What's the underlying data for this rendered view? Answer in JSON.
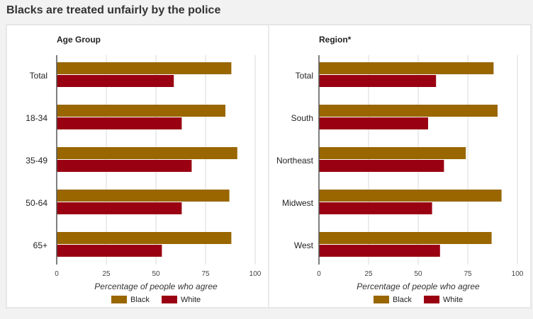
{
  "page": {
    "title": "Blacks are treated unfairly by the police"
  },
  "colors": {
    "black_series": "#996600",
    "white_series": "#990011",
    "grid": "#d9d9d9",
    "axis": "#555555"
  },
  "chart_data": [
    {
      "type": "bar",
      "orientation": "horizontal",
      "title": "Age Group",
      "categories": [
        "Total",
        "18-34",
        "35-49",
        "50-64",
        "65+"
      ],
      "series": [
        {
          "name": "Black",
          "values": [
            88,
            85,
            91,
            87,
            88
          ]
        },
        {
          "name": "White",
          "values": [
            59,
            63,
            68,
            63,
            53
          ]
        }
      ],
      "xlabel": "Percentage of people who agree",
      "xlim": [
        0,
        100
      ],
      "xticks": [
        0,
        25,
        50,
        75,
        100
      ],
      "grid": true,
      "legend_placement": "bottom"
    },
    {
      "type": "bar",
      "orientation": "horizontal",
      "title": "Region*",
      "categories": [
        "Total",
        "South",
        "Northeast",
        "Midwest",
        "West"
      ],
      "series": [
        {
          "name": "Black",
          "values": [
            88,
            90,
            74,
            92,
            87
          ]
        },
        {
          "name": "White",
          "values": [
            59,
            55,
            63,
            57,
            61
          ]
        }
      ],
      "xlabel": "Percentage of people who agree",
      "xlim": [
        0,
        100
      ],
      "xticks": [
        0,
        25,
        50,
        75,
        100
      ],
      "grid": true,
      "legend_placement": "bottom"
    }
  ]
}
